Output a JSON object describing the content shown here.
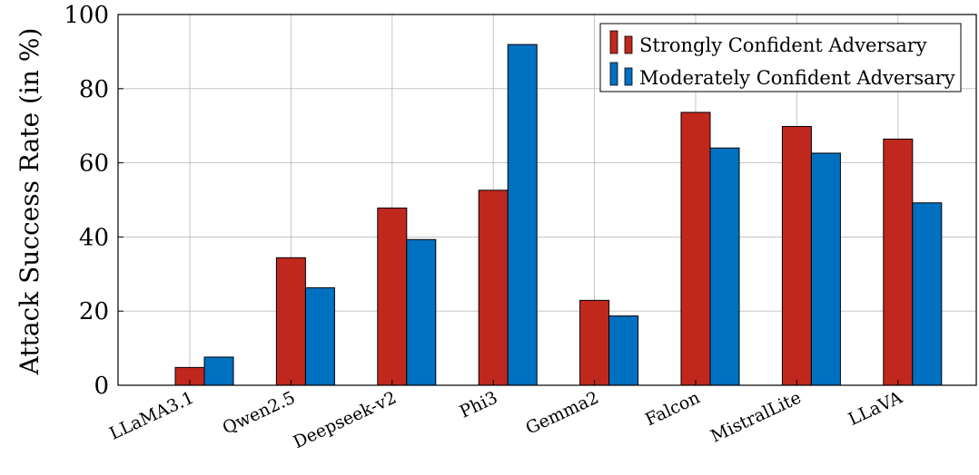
{
  "chart_data": {
    "type": "bar",
    "title": "",
    "xlabel": "",
    "ylabel": "Attack Success Rate (in %)",
    "ylim": [
      0,
      100
    ],
    "yticks": [
      0,
      20,
      40,
      60,
      80,
      100
    ],
    "grid": true,
    "legend_position": "top-right",
    "categories": [
      "LLaMA3.1",
      "Qwen2.5",
      "Deepseek-v2",
      "Phi3",
      "Gemma2",
      "Falcon",
      "MistralLite",
      "LLaVA"
    ],
    "series": [
      {
        "name": "Strongly Confident Adversary",
        "color": "#c0281e",
        "values": [
          4.8,
          34.4,
          47.8,
          52.6,
          22.9,
          73.6,
          69.8,
          66.4
        ]
      },
      {
        "name": "Moderately Confident Adversary",
        "color": "#0070c0",
        "values": [
          7.6,
          26.3,
          39.3,
          91.9,
          18.7,
          64.0,
          62.6,
          49.2
        ]
      }
    ]
  }
}
